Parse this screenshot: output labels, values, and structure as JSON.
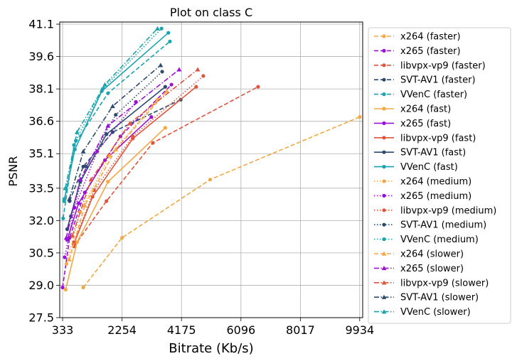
{
  "chart_data": {
    "type": "line",
    "title": "Plot on class C",
    "xlabel": "Bitrate (Kb/s)",
    "ylabel": "PSNR",
    "xlim": [
      240,
      10030
    ],
    "ylim": [
      27.5,
      41.2
    ],
    "xticks": [
      333,
      2254,
      4175,
      6096,
      8017,
      9934
    ],
    "xtick_labels": [
      "333",
      "2254",
      "4175",
      "6096",
      "8017",
      "9934"
    ],
    "yticks": [
      27.5,
      29.0,
      30.5,
      32.0,
      33.5,
      35.1,
      36.6,
      38.1,
      39.6,
      41.1
    ],
    "ytick_labels": [
      "27.5",
      "29.0",
      "30.5",
      "32.0",
      "33.5",
      "35.1",
      "36.6",
      "38.1",
      "39.6",
      "41.1"
    ],
    "grid": true,
    "legend_position": "right, outside plot",
    "series": [
      {
        "name": "x264 (faster)",
        "color": "#f5a742",
        "dash": "dashed",
        "marker": "circle",
        "x": [
          1000,
          2254,
          5100,
          9934
        ],
        "y": [
          28.9,
          31.2,
          33.9,
          36.8
        ]
      },
      {
        "name": "x265 (faster)",
        "color": "#9b10d6",
        "dash": "dashed",
        "marker": "circle",
        "x": [
          333,
          560,
          1050,
          2200,
          3850
        ],
        "y": [
          28.9,
          31.2,
          33.3,
          35.9,
          38.3
        ]
      },
      {
        "name": "libvpx-vp9 (faster)",
        "color": "#e0533c",
        "dash": "dashed",
        "marker": "circle",
        "x": [
          700,
          1750,
          3250,
          6650
        ],
        "y": [
          30.8,
          32.9,
          35.6,
          38.2
        ]
      },
      {
        "name": "SVT-AV1 (faster)",
        "color": "#2c4a6e",
        "dash": "dashed",
        "marker": "circle",
        "x": [
          560,
          1000,
          1950,
          4150
        ],
        "y": [
          32.9,
          34.5,
          36.1,
          37.6
        ]
      },
      {
        "name": "VVenC (faster)",
        "color": "#18a3ae",
        "dash": "dashed",
        "marker": "circle",
        "x": [
          350,
          700,
          1800,
          3800
        ],
        "y": [
          32.1,
          35.5,
          37.9,
          40.3
        ]
      },
      {
        "name": "x264 (fast)",
        "color": "#f5a742",
        "dash": "solid",
        "marker": "circle",
        "x": [
          430,
          800,
          1800,
          3650
        ],
        "y": [
          28.8,
          31.0,
          33.8,
          36.3
        ]
      },
      {
        "name": "x265 (fast)",
        "color": "#9b10d6",
        "dash": "solid",
        "marker": "circle",
        "x": [
          480,
          850,
          1700,
          3200
        ],
        "y": [
          31.1,
          32.8,
          34.8,
          36.8
        ]
      },
      {
        "name": "libvpx-vp9 (fast)",
        "color": "#e0533c",
        "dash": "solid",
        "marker": "circle",
        "x": [
          690,
          1300,
          2600,
          4650
        ],
        "y": [
          30.9,
          33.1,
          35.8,
          38.2
        ]
      },
      {
        "name": "SVT-AV1 (fast)",
        "color": "#2c4a6e",
        "dash": "solid",
        "marker": "circle",
        "x": [
          480,
          900,
          1750,
          3650
        ],
        "y": [
          31.6,
          33.8,
          36.0,
          38.2
        ]
      },
      {
        "name": "VVenC (fast)",
        "color": "#18a3ae",
        "dash": "solid",
        "marker": "circle",
        "x": [
          380,
          730,
          1600,
          3750
        ],
        "y": [
          32.9,
          35.3,
          38.0,
          40.7
        ]
      },
      {
        "name": "x264 (medium)",
        "color": "#f5a742",
        "dash": "dotted",
        "marker": "circle",
        "x": [
          460,
          900,
          1850,
          3400
        ],
        "y": [
          30.0,
          32.4,
          35.0,
          37.6
        ]
      },
      {
        "name": "x265 (medium)",
        "color": "#9b10d6",
        "dash": "dotted",
        "marker": "circle",
        "x": [
          400,
          720,
          1450,
          2700
        ],
        "y": [
          30.3,
          32.6,
          35.2,
          37.5
        ]
      },
      {
        "name": "libvpx-vp9 (medium)",
        "color": "#e0533c",
        "dash": "dotted",
        "marker": "circle",
        "x": [
          700,
          1350,
          2600,
          4880
        ],
        "y": [
          31.0,
          33.4,
          35.9,
          38.7
        ]
      },
      {
        "name": "SVT-AV1 (medium)",
        "color": "#2c4a6e",
        "dash": "dotted",
        "marker": "circle",
        "x": [
          600,
          1100,
          2050,
          3550
        ],
        "y": [
          32.2,
          34.5,
          36.9,
          38.9
        ]
      },
      {
        "name": "VVenC (medium)",
        "color": "#18a3ae",
        "dash": "dotted",
        "marker": "circle",
        "x": [
          390,
          760,
          1630,
          3530
        ],
        "y": [
          33.0,
          35.7,
          38.1,
          40.9
        ]
      },
      {
        "name": "x264 (slower)",
        "color": "#f5a742",
        "dash": "dashed",
        "marker": "triangle",
        "x": [
          550,
          1050,
          2050,
          3700
        ],
        "y": [
          30.2,
          32.7,
          35.3,
          38.0
        ]
      },
      {
        "name": "x265 (slower)",
        "color": "#9b10d6",
        "dash": "dashdot",
        "marker": "triangle",
        "x": [
          450,
          900,
          1800,
          4100
        ],
        "y": [
          31.2,
          33.9,
          36.4,
          39.0
        ]
      },
      {
        "name": "libvpx-vp9 (slower)",
        "color": "#e0533c",
        "dash": "dashdot",
        "marker": "triangle",
        "x": [
          650,
          1250,
          2500,
          4700
        ],
        "y": [
          31.3,
          33.9,
          36.5,
          39.0
        ]
      },
      {
        "name": "SVT-AV1 (slower)",
        "color": "#2c4a6e",
        "dash": "dashdot",
        "marker": "triangle",
        "x": [
          550,
          1000,
          1950,
          3500
        ],
        "y": [
          33.0,
          35.2,
          37.3,
          39.2
        ]
      },
      {
        "name": "VVenC (slower)",
        "color": "#18a3ae",
        "dash": "dashdot",
        "marker": "triangle",
        "x": [
          420,
          800,
          1700,
          3400
        ],
        "y": [
          33.5,
          36.1,
          38.3,
          40.9
        ]
      }
    ]
  }
}
